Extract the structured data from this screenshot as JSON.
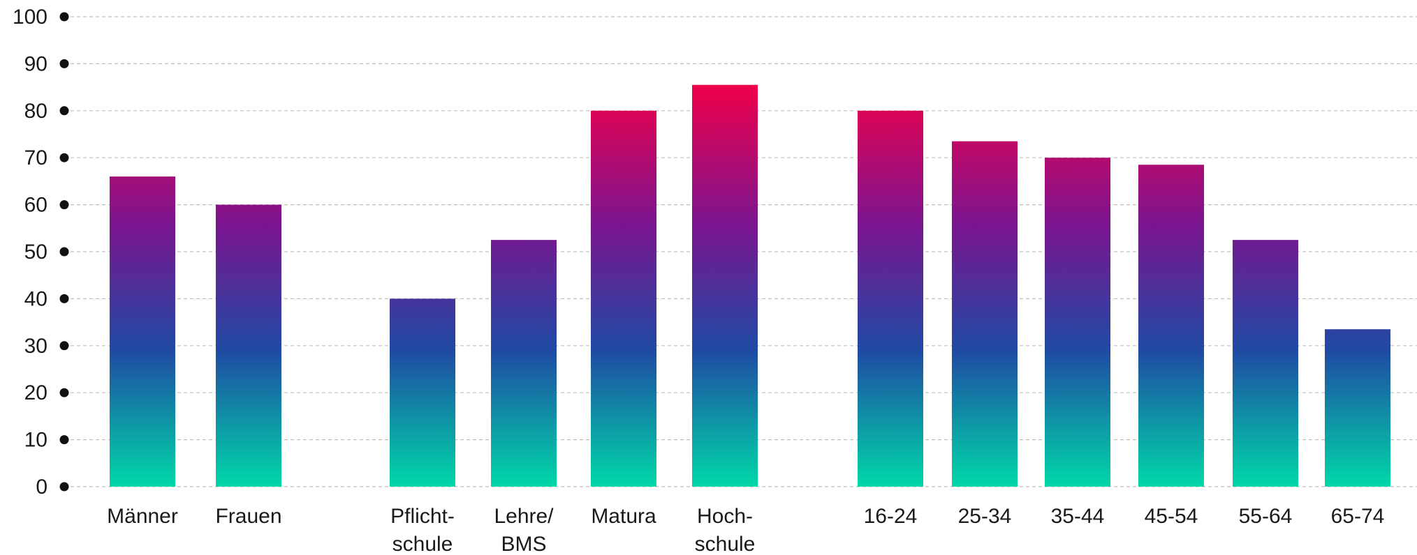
{
  "chart_data": {
    "type": "bar",
    "title": "",
    "xlabel": "",
    "ylabel": "",
    "ylim": [
      0,
      100
    ],
    "yticks": [
      0,
      10,
      20,
      30,
      40,
      50,
      60,
      70,
      80,
      90,
      100
    ],
    "grid": true,
    "categories": [
      [
        "Männer"
      ],
      [
        "Frauen"
      ],
      [
        "Pflicht-",
        "schule"
      ],
      [
        "Lehre/",
        "BMS"
      ],
      [
        "Matura"
      ],
      [
        "Hoch-",
        "schule"
      ],
      [
        "16-24"
      ],
      [
        "25-34"
      ],
      [
        "35-44"
      ],
      [
        "45-54"
      ],
      [
        "55-64"
      ],
      [
        "65-74"
      ]
    ],
    "values": [
      66,
      60,
      40,
      52.5,
      80,
      85.5,
      80,
      73.5,
      70,
      68.5,
      52.5,
      33.5
    ],
    "gradient": {
      "top": "#f0004a",
      "mid_upper": "#7a1590",
      "mid": "#1f4aa3",
      "bottom": "#00d8a8"
    }
  }
}
